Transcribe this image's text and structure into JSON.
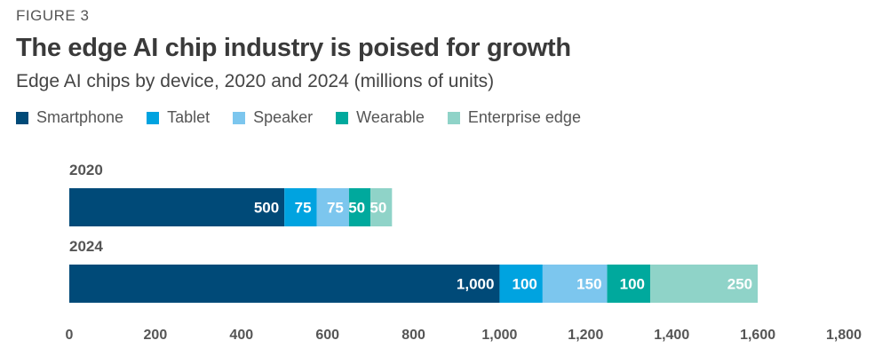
{
  "figure_label": "FIGURE 3",
  "chart_data": {
    "type": "bar",
    "orientation": "horizontal",
    "stacked": true,
    "title": "The edge AI chip industry is poised for growth",
    "subtitle": "Edge AI chips by device, 2020 and 2024 (millions of units)",
    "categories": [
      "2020",
      "2024"
    ],
    "series": [
      {
        "name": "Smartphone",
        "color": "#004a78",
        "values": [
          500,
          1000
        ],
        "labels": [
          "500",
          "1,000"
        ]
      },
      {
        "name": "Tablet",
        "color": "#00a3e0",
        "values": [
          75,
          100
        ],
        "labels": [
          "75",
          "100"
        ]
      },
      {
        "name": "Speaker",
        "color": "#7cc6ee",
        "values": [
          75,
          150
        ],
        "labels": [
          "75",
          "150"
        ]
      },
      {
        "name": "Wearable",
        "color": "#00a99d",
        "values": [
          50,
          100
        ],
        "labels": [
          "50",
          "100"
        ]
      },
      {
        "name": "Enterprise edge",
        "color": "#8fd3c8",
        "values": [
          50,
          250
        ],
        "labels": [
          "50",
          "250"
        ]
      }
    ],
    "xlim": [
      0,
      1800
    ],
    "x_ticks": [
      0,
      200,
      400,
      600,
      800,
      1000,
      1200,
      1400,
      1600,
      1800
    ],
    "x_tick_labels": [
      "0",
      "200",
      "400",
      "600",
      "800",
      "1,000",
      "1,200",
      "1,400",
      "1,600",
      "1,800"
    ],
    "legend_position": "top-left",
    "grid": false
  }
}
